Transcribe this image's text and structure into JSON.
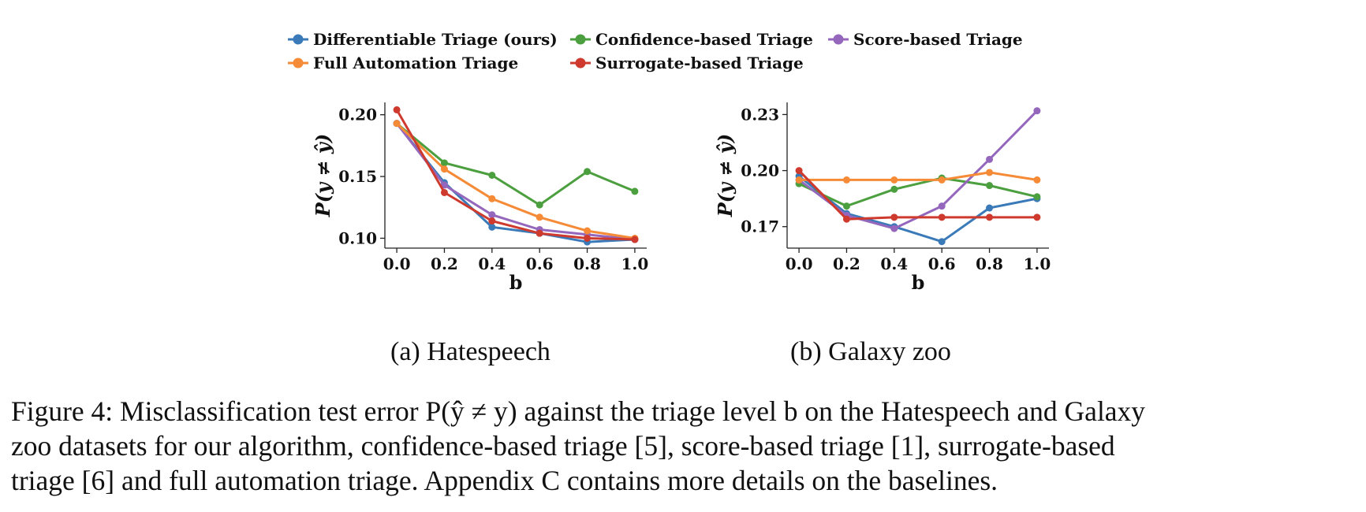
{
  "legend": [
    {
      "name": "Differentiable Triage (ours)",
      "color": "#3a7ab8"
    },
    {
      "name": "Confidence-based Triage",
      "color": "#4c9f3e"
    },
    {
      "name": "Score-based Triage",
      "color": "#9467bd"
    },
    {
      "name": "Full Automation Triage",
      "color": "#f58a37"
    },
    {
      "name": "Surrogate-based Triage",
      "color": "#cf3a2e"
    }
  ],
  "chart_data": [
    {
      "type": "line",
      "subcaption": "(a) Hatespeech",
      "xlabel": "b",
      "ylabel": "P(y ≠ ŷ)",
      "x": [
        0.0,
        0.2,
        0.4,
        0.6,
        0.8,
        1.0
      ],
      "xticks": [
        "0.0",
        "0.2",
        "0.4",
        "0.6",
        "0.8",
        "1.0"
      ],
      "yticks": [
        0.1,
        0.15,
        0.2
      ],
      "ytick_labels": [
        "0.10",
        "0.15",
        "0.20"
      ],
      "xlim": [
        -0.05,
        1.05
      ],
      "ylim": [
        0.092,
        0.21
      ],
      "grid": false,
      "series": [
        {
          "name": "Differentiable Triage (ours)",
          "color": "#3a7ab8",
          "values": [
            0.193,
            0.145,
            0.109,
            0.104,
            0.097,
            0.099
          ]
        },
        {
          "name": "Confidence-based Triage",
          "color": "#4c9f3e",
          "values": [
            0.193,
            0.161,
            0.151,
            0.127,
            0.154,
            0.138
          ]
        },
        {
          "name": "Score-based Triage",
          "color": "#9467bd",
          "values": [
            0.193,
            0.143,
            0.119,
            0.107,
            0.103,
            0.099
          ]
        },
        {
          "name": "Full Automation Triage",
          "color": "#f58a37",
          "values": [
            0.193,
            0.156,
            0.132,
            0.117,
            0.106,
            0.1
          ]
        },
        {
          "name": "Surrogate-based Triage",
          "color": "#cf3a2e",
          "values": [
            0.204,
            0.137,
            0.114,
            0.104,
            0.1,
            0.099
          ]
        }
      ]
    },
    {
      "type": "line",
      "subcaption": "(b) Galaxy zoo",
      "xlabel": "b",
      "ylabel": "P(y ≠ ŷ)",
      "x": [
        0.0,
        0.2,
        0.4,
        0.6,
        0.8,
        1.0
      ],
      "xticks": [
        "0.0",
        "0.2",
        "0.4",
        "0.6",
        "0.8",
        "1.0"
      ],
      "yticks": [
        0.17,
        0.2,
        0.23
      ],
      "ytick_labels": [
        "0.17",
        "0.20",
        "0.23"
      ],
      "xlim": [
        -0.05,
        1.05
      ],
      "ylim": [
        0.1585,
        0.2365
      ],
      "grid": false,
      "series": [
        {
          "name": "Differentiable Triage (ours)",
          "color": "#3a7ab8",
          "values": [
            0.197,
            0.177,
            0.17,
            0.162,
            0.18,
            0.185
          ]
        },
        {
          "name": "Confidence-based Triage",
          "color": "#4c9f3e",
          "values": [
            0.193,
            0.181,
            0.19,
            0.196,
            0.192,
            0.186
          ]
        },
        {
          "name": "Score-based Triage",
          "color": "#9467bd",
          "values": [
            0.195,
            0.176,
            0.169,
            0.181,
            0.206,
            0.232
          ]
        },
        {
          "name": "Full Automation Triage",
          "color": "#f58a37",
          "values": [
            0.195,
            0.195,
            0.195,
            0.195,
            0.199,
            0.195
          ]
        },
        {
          "name": "Surrogate-based Triage",
          "color": "#cf3a2e",
          "values": [
            0.2,
            0.174,
            0.175,
            0.175,
            0.175,
            0.175
          ]
        }
      ]
    }
  ],
  "caption": {
    "lines": [
      "Figure 4: Misclassification test error P(ŷ ≠ y) against the triage level b on the Hatespeech and Galaxy",
      "zoo datasets for our algorithm, confidence-based triage [5], score-based triage [1], surrogate-based",
      "triage [6] and full automation triage. Appendix C contains more details on the baselines."
    ]
  }
}
